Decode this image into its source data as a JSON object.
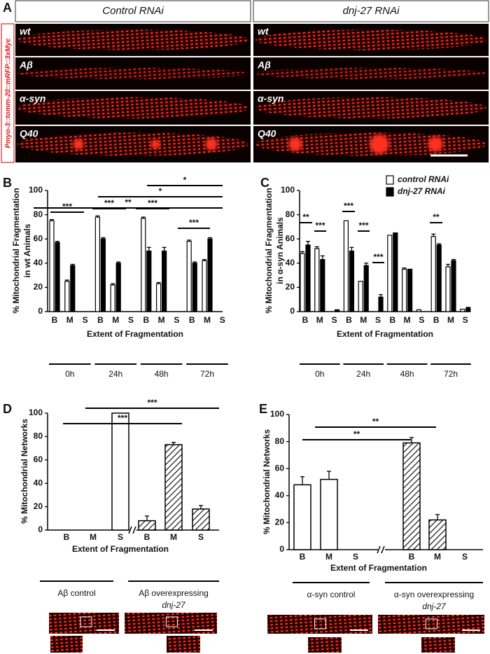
{
  "panel_labels": [
    "A",
    "B",
    "C",
    "D",
    "E"
  ],
  "panel_a": {
    "side_label": "Pmyo-3::tomm-20::mRFP::3xMyc",
    "columns": [
      "Control RNAi",
      "dnj-27 RNAi"
    ],
    "rows": [
      "wt",
      "Aβ",
      "α-syn",
      "Q40"
    ]
  },
  "chart_data": [
    {
      "type": "bar",
      "y_label": [
        "% Mitochondrial Fragmentation",
        "in wt Animals"
      ],
      "x_label": "Extent of Fragmentation",
      "categories": [
        "B",
        "M",
        "S",
        "B",
        "M",
        "S",
        "B",
        "M",
        "S",
        "B",
        "M",
        "S"
      ],
      "timepoints": [
        "0h",
        "24h",
        "48h",
        "72h"
      ],
      "series": [
        {
          "color": "#ffffff",
          "values": [
            75,
            25,
            0,
            78,
            22,
            0,
            77,
            23,
            0,
            58,
            42,
            0
          ],
          "errors": [
            1,
            1,
            0,
            1,
            1,
            0,
            1,
            1,
            0,
            1,
            1,
            0
          ]
        },
        {
          "color": "#000000",
          "values": [
            57,
            38,
            0,
            60,
            40,
            0,
            50,
            50,
            0,
            40,
            60,
            0
          ],
          "errors": [
            1,
            1,
            0,
            1,
            1,
            0,
            3,
            3,
            0,
            1,
            1,
            0
          ]
        }
      ],
      "ylim": [
        0,
        100
      ],
      "yticks": [
        0,
        20,
        40,
        60,
        80,
        100
      ],
      "annotations": [
        "***",
        "***",
        "***",
        "***",
        "*",
        "*",
        "**"
      ]
    },
    {
      "type": "bar",
      "y_label": [
        "% Mitochondrial Fragmentation",
        "in α-syn Animals"
      ],
      "x_label": "Extent of Fragmentation",
      "categories": [
        "B",
        "M",
        "S",
        "B",
        "M",
        "S",
        "B",
        "M",
        "S",
        "B",
        "M",
        "S"
      ],
      "timepoints": [
        "0h",
        "24h",
        "48h",
        "72h"
      ],
      "series": [
        {
          "name": "control RNAi",
          "color": "#ffffff",
          "values": [
            48,
            52,
            0,
            75,
            25,
            0,
            63,
            35,
            1.5,
            62,
            37,
            2
          ],
          "errors": [
            1.5,
            1.5,
            0,
            0,
            0,
            0,
            0,
            1,
            0,
            2,
            2,
            0
          ]
        },
        {
          "name": "dnj-27 RNAi",
          "color": "#000000",
          "values": [
            55,
            43,
            1.5,
            50,
            38,
            12,
            65,
            35,
            0,
            55,
            42,
            3
          ],
          "errors": [
            3,
            3,
            0,
            3,
            2,
            2,
            0,
            0,
            0,
            1,
            1,
            0.5
          ]
        }
      ],
      "legend": true,
      "ylim": [
        0,
        100
      ],
      "yticks": [
        0,
        20,
        40,
        60,
        80,
        100
      ],
      "annotations": [
        "**",
        "***",
        "***",
        "***",
        "***",
        "**"
      ]
    },
    {
      "type": "bar",
      "y_label": [
        "% Mitochondrial Networks"
      ],
      "x_label": "Extent of Fragmentation",
      "groups": [
        {
          "label": [
            "Aβ control"
          ],
          "categories": [
            "B",
            "M",
            "S"
          ],
          "values": [
            0,
            0,
            100
          ],
          "errors": [
            0,
            0,
            0
          ]
        },
        {
          "label": [
            "Aβ overexpressing",
            "dnj-27"
          ],
          "categories": [
            "B",
            "M",
            "S"
          ],
          "values": [
            8,
            73,
            18
          ],
          "errors": [
            4,
            2,
            3
          ]
        }
      ],
      "ylim": [
        0,
        100
      ],
      "yticks": [
        0,
        20,
        40,
        60,
        80,
        100
      ],
      "annotations": [
        "***",
        "***"
      ]
    },
    {
      "type": "bar",
      "y_label": [
        "% Mitochondrial Networks"
      ],
      "x_label": "Extent of Fragmentation",
      "groups": [
        {
          "label": [
            "α-syn control"
          ],
          "categories": [
            "B",
            "M",
            "S"
          ],
          "values": [
            48,
            52,
            0
          ],
          "errors": [
            6,
            6,
            0
          ]
        },
        {
          "label": [
            "α-syn overexpressing",
            "dnj-27"
          ],
          "categories": [
            "B",
            "M",
            "S"
          ],
          "values": [
            79,
            22,
            0
          ],
          "errors": [
            4,
            4,
            0
          ]
        }
      ],
      "ylim": [
        0,
        100
      ],
      "yticks": [
        0,
        20,
        40,
        60,
        80,
        100
      ],
      "annotations": [
        "**",
        "**"
      ]
    }
  ]
}
